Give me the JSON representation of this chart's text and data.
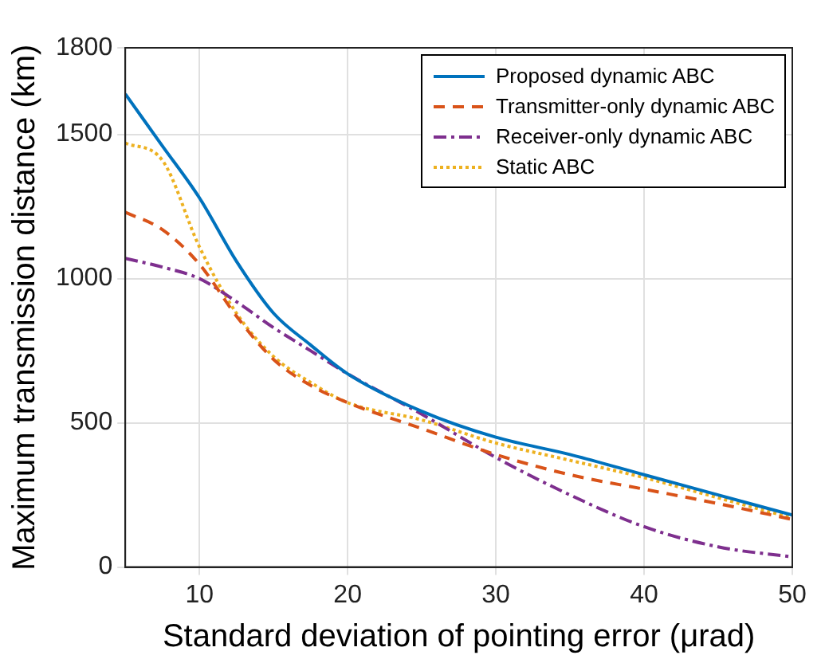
{
  "chart_data": {
    "type": "line",
    "xlabel": "Standard deviation of pointing error (μrad)",
    "ylabel": "Maximum transmission distance (km)",
    "x": [
      5,
      7.5,
      10,
      12.5,
      15,
      17.5,
      20,
      25,
      30,
      35,
      40,
      45,
      50
    ],
    "xlim": [
      5,
      50
    ],
    "xticks": [
      10,
      20,
      30,
      40,
      50
    ],
    "ylim": [
      0,
      1800
    ],
    "yticks": [
      0,
      500,
      1000,
      1500,
      1800
    ],
    "grid": true,
    "legend": "top right",
    "marker": "none",
    "series": [
      {
        "name": "Proposed dynamic ABC",
        "color": "#0072bd",
        "line_style": "solid",
        "values": [
          1640,
          1460,
          1280,
          1060,
          880,
          770,
          670,
          540,
          450,
          390,
          320,
          250,
          180
        ]
      },
      {
        "name": "Transmitter-only dynamic ABC",
        "color": "#d95319",
        "line_style": "dashed",
        "values": [
          1230,
          1170,
          1050,
          870,
          720,
          630,
          570,
          480,
          390,
          320,
          270,
          220,
          165
        ]
      },
      {
        "name": "Receiver-only dynamic ABC",
        "color": "#7e2f8e",
        "line_style": "dashdot",
        "values": [
          1070,
          1040,
          1000,
          920,
          830,
          750,
          670,
          530,
          380,
          250,
          140,
          70,
          35
        ]
      },
      {
        "name": "Static ABC",
        "color": "#edb120",
        "line_style": "dotted",
        "values": [
          1470,
          1410,
          1110,
          880,
          730,
          640,
          570,
          510,
          430,
          370,
          310,
          240,
          170
        ]
      }
    ]
  }
}
